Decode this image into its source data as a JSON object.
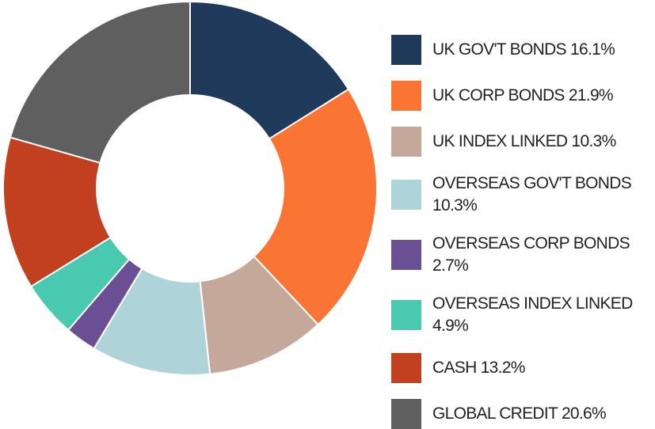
{
  "chart_data": {
    "type": "donut",
    "categories": [
      "UK GOV'T BONDS",
      "UK CORP BONDS",
      "UK INDEX LINKED",
      "OVERSEAS GOV'T BONDS",
      "OVERSEAS CORP BONDS",
      "OVERSEAS INDEX LINKED",
      "CASH",
      "GLOBAL CREDIT"
    ],
    "values": [
      16.1,
      21.9,
      10.3,
      10.3,
      2.7,
      4.9,
      13.2,
      20.6
    ],
    "value_labels": [
      "16.1%",
      "21.9%",
      "10.3%",
      "10.3%",
      "2.7%",
      "4.9%",
      "13.2%",
      "20.6%"
    ],
    "colors": [
      "#1f3a5a",
      "#fa7433",
      "#c4a99a",
      "#aed4da",
      "#6a4f95",
      "#48c9b0",
      "#c0401f",
      "#5f5f5f"
    ]
  }
}
